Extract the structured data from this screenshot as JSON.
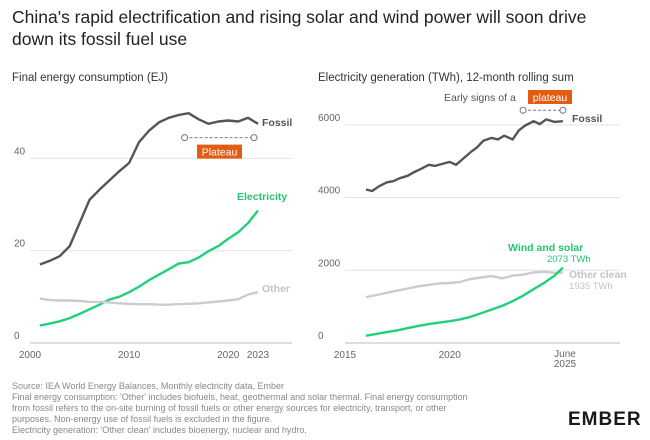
{
  "title_line1": "China's rapid electrification and rising solar and wind power will soon drive",
  "title_line2": "down its fossil fuel use",
  "footer": [
    "Source: IEA World Energy Balances, Monthly electricity data, Ember",
    "Final energy consumption: 'Other' includes biofuels, heat, geothermal and solar thermal. Final energy consumption",
    "from fossil refers to the on-site burning of fossil fuels or other energy sources for electricity, transport, or other",
    "purposes. Non-energy use of fossil fuels is excluded in the figure.",
    "Electricity generation: 'Other clean' includes bioenergy, nuclear and hydro."
  ],
  "logo": "EMBER",
  "colors": {
    "fossil": "#555555",
    "electricity": "#22d07a",
    "other": "#cccccc",
    "accent": "#e25c12"
  },
  "chart_data": [
    {
      "type": "line",
      "title": "Final energy consumption (EJ)",
      "xlim": [
        2000,
        2023
      ],
      "ylim": [
        0,
        52
      ],
      "x_ticks": [
        2000,
        2010,
        2020,
        2023
      ],
      "y_ticks": [
        0,
        20,
        40
      ],
      "grid": "horizontal",
      "series": [
        {
          "name": "Fossil",
          "color": "#555555",
          "x": [
            2001,
            2002,
            2003,
            2004,
            2005,
            2006,
            2007,
            2008,
            2009,
            2010,
            2011,
            2012,
            2013,
            2014,
            2015,
            2016,
            2017,
            2018,
            2019,
            2020,
            2021,
            2022,
            2023
          ],
          "y": [
            17,
            17.8,
            18.8,
            21,
            26,
            31,
            33.2,
            35.2,
            37.2,
            39,
            43.5,
            46,
            47.8,
            48.8,
            49.4,
            49.8,
            48.5,
            47.5,
            48,
            48.2,
            48,
            48.8,
            47.5
          ]
        },
        {
          "name": "Electricity",
          "color": "#22d07a",
          "x": [
            2001,
            2002,
            2003,
            2004,
            2005,
            2006,
            2007,
            2008,
            2009,
            2010,
            2011,
            2012,
            2013,
            2014,
            2015,
            2016,
            2017,
            2018,
            2019,
            2020,
            2021,
            2022,
            2023
          ],
          "y": [
            3.8,
            4.2,
            4.7,
            5.4,
            6.3,
            7.3,
            8.3,
            9.4,
            10,
            11,
            12.2,
            13.6,
            14.8,
            16,
            17.2,
            17.5,
            18.5,
            19.9,
            21,
            22.6,
            24,
            26,
            28.7
          ]
        },
        {
          "name": "Other",
          "color": "#cccccc",
          "x": [
            2001,
            2002,
            2003,
            2004,
            2005,
            2006,
            2007,
            2008,
            2009,
            2010,
            2011,
            2012,
            2013,
            2014,
            2015,
            2016,
            2017,
            2018,
            2019,
            2020,
            2021,
            2022,
            2023
          ],
          "y": [
            9.6,
            9.3,
            9.2,
            9.2,
            9.1,
            8.9,
            8.9,
            8.8,
            8.6,
            8.5,
            8.4,
            8.4,
            8.3,
            8.3,
            8.4,
            8.5,
            8.6,
            8.8,
            9,
            9.2,
            9.5,
            10.5,
            11
          ]
        }
      ],
      "annotation": {
        "label": "Plateau",
        "x_start": 2016,
        "x_end": 2023,
        "y": 44.5
      }
    },
    {
      "type": "line",
      "title": "Electricity generation (TWh), 12-month rolling sum",
      "xlim": [
        2015,
        2025.5
      ],
      "ylim": [
        0,
        6600
      ],
      "x_ticks": [
        "2015",
        "2020",
        "June",
        "2025"
      ],
      "y_ticks": [
        0,
        2000,
        4000,
        6000
      ],
      "grid": "horizontal",
      "series": [
        {
          "name": "Fossil",
          "color": "#555555",
          "x": [
            2016,
            2016.3,
            2016.6,
            2017,
            2017.3,
            2017.6,
            2018,
            2018.3,
            2018.6,
            2019,
            2019.3,
            2019.6,
            2020,
            2020.3,
            2020.6,
            2021,
            2021.3,
            2021.6,
            2022,
            2022.3,
            2022.6,
            2023,
            2023.3,
            2023.6,
            2024,
            2024.3,
            2024.6,
            2025,
            2025.4
          ],
          "y": [
            4220,
            4180,
            4300,
            4420,
            4450,
            4530,
            4600,
            4700,
            4780,
            4900,
            4870,
            4920,
            4980,
            4900,
            5050,
            5250,
            5380,
            5560,
            5640,
            5600,
            5700,
            5600,
            5850,
            5980,
            6100,
            6020,
            6150,
            6080,
            6100
          ]
        },
        {
          "name": "Other clean",
          "value_label": "1935 TWh",
          "color": "#cccccc",
          "x": [
            2016,
            2016.5,
            2017,
            2017.5,
            2018,
            2018.5,
            2019,
            2019.5,
            2020,
            2020.5,
            2021,
            2021.5,
            2022,
            2022.5,
            2023,
            2023.5,
            2024,
            2024.5,
            2025,
            2025.4
          ],
          "y": [
            1260,
            1320,
            1380,
            1440,
            1500,
            1560,
            1600,
            1640,
            1650,
            1680,
            1760,
            1800,
            1840,
            1780,
            1850,
            1880,
            1940,
            1960,
            1930,
            1935
          ]
        },
        {
          "name": "Wind and solar",
          "value_label": "2073 TWh",
          "color": "#22d07a",
          "x": [
            2016,
            2016.5,
            2017,
            2017.5,
            2018,
            2018.5,
            2019,
            2019.5,
            2020,
            2020.5,
            2021,
            2021.5,
            2022,
            2022.5,
            2023,
            2023.5,
            2024,
            2024.5,
            2025,
            2025.4
          ],
          "y": [
            200,
            250,
            300,
            350,
            410,
            470,
            520,
            560,
            600,
            650,
            720,
            820,
            920,
            1020,
            1150,
            1300,
            1480,
            1650,
            1850,
            2073
          ]
        }
      ],
      "annotation": {
        "label_prefix": "Early signs of a",
        "label": "plateau",
        "x_start": 2023.5,
        "x_end": 2025.4,
        "y": 6400
      }
    }
  ]
}
